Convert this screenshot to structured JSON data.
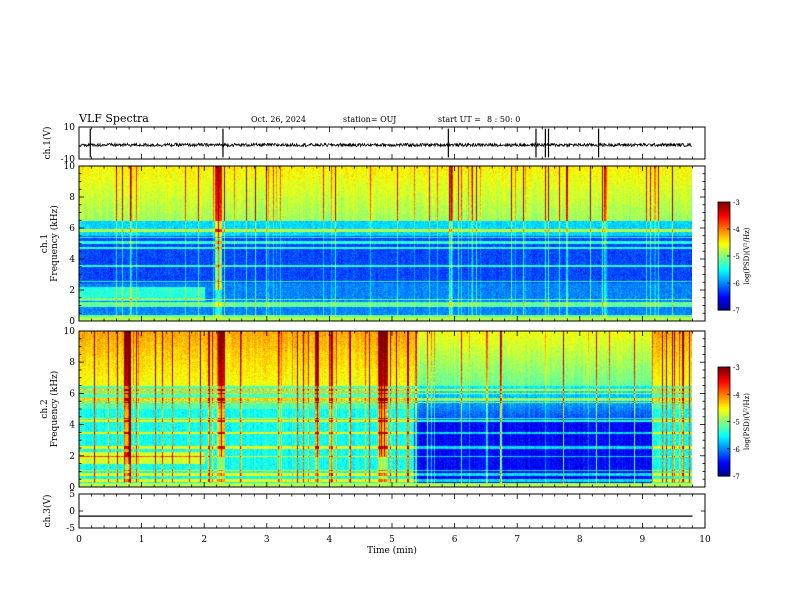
{
  "header": {
    "title": "VLF Spectra",
    "date": "Oct. 26, 2024",
    "station": "station= OUJ",
    "start_label": "start UT =",
    "start_value": "8 : 50: 0"
  },
  "chart_data": [
    {
      "type": "line",
      "panel": "waveform-ch1",
      "ylabel": "ch.1(V)",
      "yticks": [
        "10",
        "-10"
      ],
      "ylim": [
        -10,
        10
      ],
      "xlim": [
        0,
        10
      ],
      "description_of_trace": "continuous noisy trace near 0 V with sparse spikes",
      "spikes_min": [
        0.18,
        2.3,
        5.9,
        7.3,
        7.45,
        7.5,
        8.3
      ]
    },
    {
      "type": "heatmap",
      "panel": "spectrogram-ch1",
      "ylabel": "ch.1\nFrequency (kHz)",
      "yticks": [
        "0",
        "2",
        "4",
        "6",
        "8",
        "10"
      ],
      "ylim": [
        0,
        10
      ],
      "xlim": [
        0,
        9.8
      ],
      "colorbar": {
        "label": "log(PSD)(V²/Hz)",
        "ticks": [
          "-3",
          "-4",
          "-5",
          "-6",
          "-7"
        ],
        "range": [
          -7,
          -3
        ],
        "colormap": "jet"
      }
    },
    {
      "type": "heatmap",
      "panel": "spectrogram-ch2",
      "ylabel": "ch.2\nFrequency (kHz)",
      "yticks": [
        "0",
        "2",
        "4",
        "6",
        "8",
        "10"
      ],
      "ylim": [
        0,
        10
      ],
      "xlim": [
        0,
        9.8
      ],
      "quiet_interval_min": [
        5.35,
        9.15
      ],
      "colorbar": {
        "label": "log(PSD)(V²/Hz)",
        "ticks": [
          "-3",
          "-4",
          "-5",
          "-6",
          "-7"
        ],
        "range": [
          -7,
          -3
        ],
        "colormap": "jet"
      }
    },
    {
      "type": "line",
      "panel": "waveform-ch3",
      "ylabel": "ch.3(V)",
      "yticks": [
        "5",
        "0",
        "-5"
      ],
      "ylim": [
        -5,
        5
      ],
      "xlim": [
        0,
        10
      ],
      "constant_value": -1.5
    }
  ],
  "xaxis": {
    "label": "Time (min)",
    "ticks": [
      "0",
      "1",
      "2",
      "3",
      "4",
      "5",
      "6",
      "7",
      "8",
      "9",
      "10"
    ],
    "range": [
      0,
      10
    ]
  }
}
